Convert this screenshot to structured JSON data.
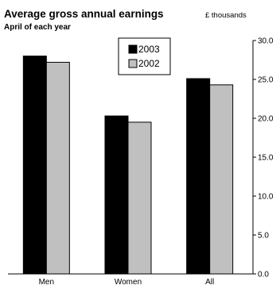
{
  "chart_data": {
    "type": "bar",
    "title": "Average gross annual earnings",
    "subtitle": "April of each year",
    "unit_label": "£ thousands",
    "categories": [
      "Men",
      "Women",
      "All"
    ],
    "series": [
      {
        "name": "2003",
        "color": "#000000",
        "values": [
          28.0,
          20.3,
          25.1
        ]
      },
      {
        "name": "2002",
        "color": "#c0c0c0",
        "values": [
          27.2,
          19.5,
          24.3
        ]
      }
    ],
    "ylim": [
      0,
      30
    ],
    "yticks": [
      0,
      5,
      10,
      15,
      20,
      25,
      30
    ],
    "ytick_labels": [
      "0.0",
      "5.0",
      "10.0",
      "15.0",
      "20.0",
      "25.0",
      "30.0"
    ],
    "y_axis_side": "right",
    "grid": false,
    "legend_position": "top-center"
  }
}
